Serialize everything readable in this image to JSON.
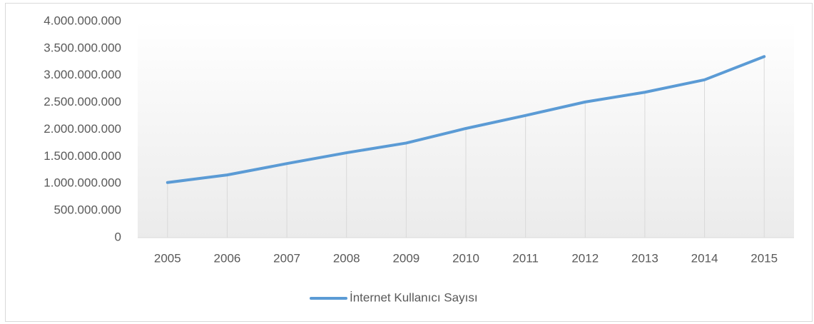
{
  "chart_data": {
    "type": "line",
    "categories": [
      "2005",
      "2006",
      "2007",
      "2008",
      "2009",
      "2010",
      "2011",
      "2012",
      "2013",
      "2014",
      "2015"
    ],
    "series": [
      {
        "name": "İnternet Kullanıcı Sayısı",
        "color": "#5b9bd5",
        "values": [
          1020000000,
          1160000000,
          1370000000,
          1570000000,
          1750000000,
          2020000000,
          2260000000,
          2510000000,
          2690000000,
          2920000000,
          3350000000
        ]
      }
    ],
    "ylim": [
      0,
      4000000000
    ],
    "yticks": [
      0,
      {
        "value": 500000000,
        "label": "500.000.000"
      },
      {
        "value": 1000000000,
        "label": "1.000.000.000"
      },
      {
        "value": 1500000000,
        "label": "1.500.000.000"
      },
      {
        "value": 2000000000,
        "label": "2.000.000.000"
      },
      {
        "value": 2500000000,
        "label": "2.500.000.000"
      },
      {
        "value": 3000000000,
        "label": "3.000.000.000"
      },
      {
        "value": 3500000000,
        "label": "3.500.000.000"
      },
      {
        "value": 4000000000,
        "label": "4.000.000.000"
      }
    ],
    "drop_lines": true,
    "legend": "bottom"
  }
}
